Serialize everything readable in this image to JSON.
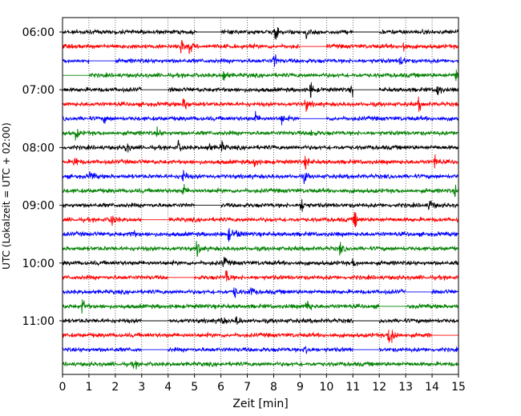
{
  "chart_data": {
    "type": "line",
    "title": "",
    "xlabel": "Zeit  [min]",
    "ylabel": "UTC (Lokalzeit = UTC + 02:00)",
    "xlim": [
      0,
      15
    ],
    "x_ticks": [
      "0",
      "1",
      "2",
      "3",
      "4",
      "5",
      "6",
      "7",
      "8",
      "9",
      "10",
      "11",
      "12",
      "13",
      "14",
      "15"
    ],
    "y_ticks": [
      "06:00",
      "07:00",
      "08:00",
      "09:00",
      "10:00",
      "11:00"
    ],
    "grid": {
      "vertical": true,
      "style": "dotted"
    },
    "trace_colors": [
      "#000000",
      "#ff0000",
      "#0000ff",
      "#008000"
    ],
    "series": [
      {
        "start": "06:00",
        "gaps": [
          [
            5.1,
            6.0
          ],
          [
            11.0,
            12.0
          ]
        ],
        "events": [
          [
            8.05,
            3.0
          ],
          [
            9.25,
            2.0
          ]
        ]
      },
      {
        "start": "06:15",
        "gaps": [
          [
            9.0,
            10.0
          ]
        ],
        "events": [
          [
            4.5,
            3.5
          ],
          [
            4.8,
            2.0
          ],
          [
            12.9,
            2.5
          ]
        ]
      },
      {
        "start": "06:30",
        "gaps": [
          [
            1.0,
            2.0
          ]
        ],
        "events": [
          [
            8.0,
            3.0
          ],
          [
            12.8,
            2.5
          ]
        ]
      },
      {
        "start": "06:45",
        "gaps": [
          [
            0.0,
            1.0
          ]
        ],
        "events": [
          [
            6.1,
            2.5
          ],
          [
            14.9,
            3.0
          ]
        ]
      },
      {
        "start": "07:00",
        "gaps": [
          [
            3.0,
            4.0
          ],
          [
            11.0,
            12.0
          ]
        ],
        "events": [
          [
            9.4,
            3.0
          ],
          [
            10.95,
            4.0
          ],
          [
            14.2,
            2.8
          ]
        ]
      },
      {
        "start": "07:15",
        "gaps": [],
        "events": [
          [
            4.6,
            3.5
          ],
          [
            9.2,
            2.5
          ],
          [
            13.5,
            3.0
          ]
        ]
      },
      {
        "start": "07:30",
        "gaps": [
          [
            9.0,
            10.0
          ]
        ],
        "events": [
          [
            1.6,
            1.5
          ],
          [
            7.3,
            2.0
          ],
          [
            8.3,
            1.8
          ]
        ]
      },
      {
        "start": "07:45",
        "gaps": [],
        "events": [
          [
            0.5,
            2.0
          ],
          [
            3.6,
            2.0
          ],
          [
            9.4,
            2.0
          ]
        ]
      },
      {
        "start": "08:00",
        "gaps": [],
        "events": [
          [
            2.4,
            2.2
          ],
          [
            4.4,
            2.5
          ],
          [
            5.5,
            2.0
          ],
          [
            6.0,
            2.2
          ]
        ]
      },
      {
        "start": "08:15",
        "gaps": [],
        "events": [
          [
            0.45,
            2.5
          ],
          [
            7.25,
            2.5
          ],
          [
            9.2,
            2.5
          ],
          [
            14.1,
            2.5
          ]
        ]
      },
      {
        "start": "08:30",
        "gaps": [],
        "events": [
          [
            1.05,
            2.0
          ],
          [
            4.55,
            3.0
          ],
          [
            9.15,
            2.2
          ]
        ]
      },
      {
        "start": "08:45",
        "gaps": [],
        "events": [
          [
            4.55,
            2.5
          ],
          [
            14.85,
            2.0
          ]
        ]
      },
      {
        "start": "09:00",
        "gaps": [
          [
            5.0,
            6.0
          ]
        ],
        "events": [
          [
            9.05,
            3.0
          ],
          [
            13.9,
            3.0
          ]
        ]
      },
      {
        "start": "09:15",
        "gaps": [
          [
            3.0,
            4.0
          ]
        ],
        "events": [
          [
            1.85,
            3.0
          ],
          [
            11.05,
            3.5
          ]
        ]
      },
      {
        "start": "09:30",
        "gaps": [],
        "events": [
          [
            2.6,
            2.0
          ],
          [
            6.3,
            2.5
          ],
          [
            6.6,
            2.0
          ]
        ]
      },
      {
        "start": "09:45",
        "gaps": [],
        "events": [
          [
            5.1,
            3.5
          ],
          [
            10.5,
            2.0
          ]
        ]
      },
      {
        "start": "10:00",
        "gaps": [],
        "events": [
          [
            6.1,
            2.5
          ],
          [
            11.0,
            1.5
          ]
        ]
      },
      {
        "start": "10:15",
        "gaps": [
          [
            4.0,
            5.0
          ]
        ],
        "events": [
          [
            6.2,
            2.8
          ]
        ]
      },
      {
        "start": "10:30",
        "gaps": [
          [
            13.0,
            14.0
          ]
        ],
        "events": [
          [
            6.5,
            2.5
          ],
          [
            7.1,
            2.2
          ]
        ]
      },
      {
        "start": "10:45",
        "gaps": [
          [
            12.0,
            13.0
          ]
        ],
        "events": [
          [
            0.75,
            2.5
          ],
          [
            9.25,
            4.0
          ]
        ]
      },
      {
        "start": "11:00",
        "gaps": [
          [
            3.0,
            4.0
          ],
          [
            11.0,
            12.0
          ]
        ],
        "events": [
          [
            6.0,
            1.8
          ],
          [
            6.6,
            2.0
          ]
        ]
      },
      {
        "start": "11:15",
        "gaps": [
          [
            14.0,
            15.0
          ]
        ],
        "events": [
          [
            12.35,
            4.0
          ],
          [
            12.5,
            3.0
          ]
        ]
      },
      {
        "start": "11:30",
        "gaps": [
          [
            3.0,
            4.0
          ],
          [
            11.0,
            12.0
          ]
        ],
        "events": [
          [
            9.2,
            3.0
          ]
        ]
      },
      {
        "start": "11:45",
        "gaps": [],
        "events": [
          [
            2.7,
            1.5
          ]
        ]
      }
    ]
  }
}
